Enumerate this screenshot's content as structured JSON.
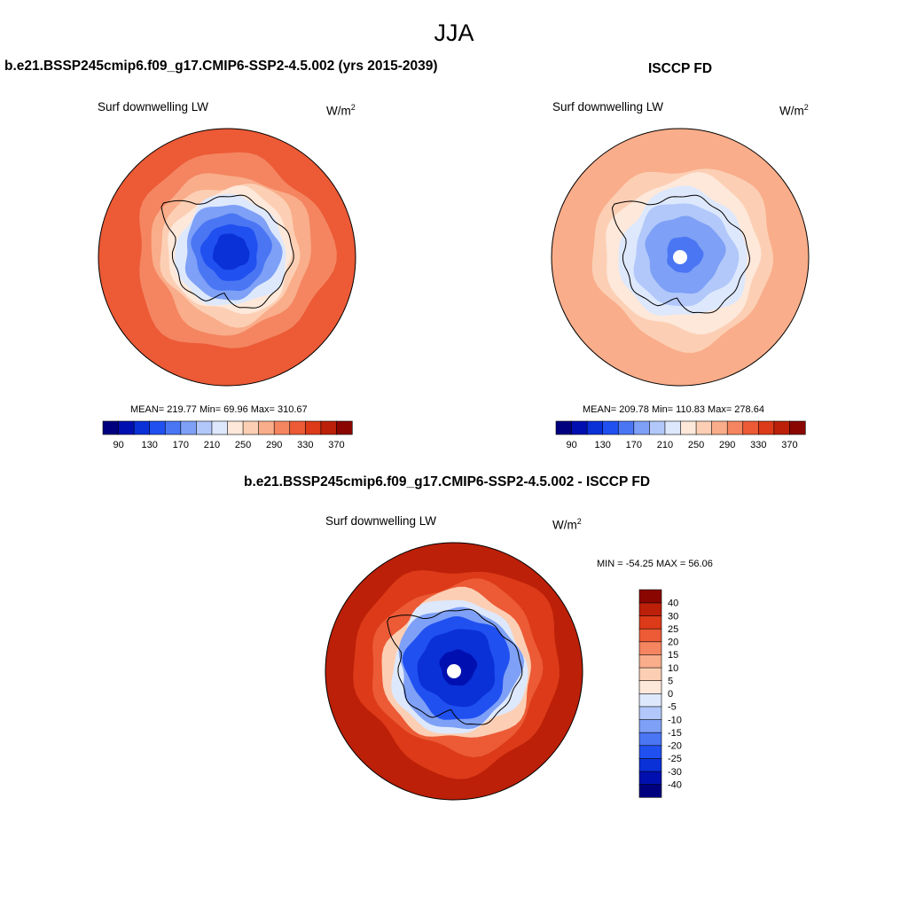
{
  "figure": {
    "title": "JJA"
  },
  "chart_data": [
    {
      "type": "heatmap",
      "projection": "south polar stereographic",
      "title": "b.e21.BSSP245cmip6.f09_g17.CMIP6-SSP2-4.5.002 (yrs 2015-2039)",
      "left_label": "Surf downwelling LW",
      "units_label": "W/m",
      "units_exp": "2",
      "stats": "MEAN= 219.77  Min=  69.96  Max= 310.67",
      "colorbar": {
        "orientation": "horizontal",
        "levels": [
          80,
          90,
          110,
          130,
          150,
          170,
          190,
          210,
          230,
          250,
          270,
          290,
          310,
          330,
          350,
          370
        ],
        "tick_labels": [
          "90",
          "130",
          "170",
          "210",
          "250",
          "290",
          "330",
          "370"
        ],
        "colors": [
          "#00007f",
          "#0010b0",
          "#0a30d8",
          "#2050f0",
          "#4a76f4",
          "#7ea0f6",
          "#b2c8fa",
          "#dde8fc",
          "#fde8da",
          "#fccfb4",
          "#f9ad8a",
          "#f48560",
          "#ec5a36",
          "#dc3a18",
          "#bc2008",
          "#8a0600"
        ]
      },
      "field": {
        "coast_value": 210,
        "continent_center": [
          0.03,
          -0.04
        ],
        "continent_radius": 0.45,
        "rings": [
          {
            "r": 1.0,
            "v": 300
          },
          {
            "r": 0.76,
            "v": 285
          },
          {
            "r": 0.62,
            "v": 265
          },
          {
            "r": 0.54,
            "v": 248
          },
          {
            "r": 0.48,
            "v": 225
          },
          {
            "r": 0.43,
            "v": 200
          },
          {
            "r": 0.37,
            "v": 175
          },
          {
            "r": 0.3,
            "v": 150
          },
          {
            "r": 0.22,
            "v": 120
          },
          {
            "r": 0.0,
            "v": 90
          }
        ]
      }
    },
    {
      "type": "heatmap",
      "projection": "south polar stereographic",
      "title": "ISCCP FD",
      "left_label": "Surf downwelling LW",
      "units_label": "W/m",
      "units_exp": "2",
      "stats": "MEAN= 209.78  Min= 110.83  Max= 278.64",
      "colorbar": {
        "orientation": "horizontal",
        "levels": [
          80,
          90,
          110,
          130,
          150,
          170,
          190,
          210,
          230,
          250,
          270,
          290,
          310,
          330,
          350,
          370
        ],
        "tick_labels": [
          "90",
          "130",
          "170",
          "210",
          "250",
          "290",
          "330",
          "370"
        ],
        "colors": [
          "#00007f",
          "#0010b0",
          "#0a30d8",
          "#2050f0",
          "#4a76f4",
          "#7ea0f6",
          "#b2c8fa",
          "#dde8fc",
          "#fde8da",
          "#fccfb4",
          "#f9ad8a",
          "#f48560",
          "#ec5a36",
          "#dc3a18",
          "#bc2008",
          "#8a0600"
        ]
      },
      "field": {
        "coast_value": 200,
        "continent_center": [
          0.03,
          -0.02
        ],
        "continent_radius": 0.47,
        "missing_pole": true,
        "rings": [
          {
            "r": 1.0,
            "v": 262
          },
          {
            "r": 0.82,
            "v": 255
          },
          {
            "r": 0.7,
            "v": 242
          },
          {
            "r": 0.6,
            "v": 222
          },
          {
            "r": 0.5,
            "v": 200
          },
          {
            "r": 0.4,
            "v": 175
          },
          {
            "r": 0.3,
            "v": 155
          },
          {
            "r": 0.0,
            "v": 140
          }
        ]
      }
    },
    {
      "type": "heatmap",
      "projection": "south polar stereographic",
      "title": "b.e21.BSSP245cmip6.f09_g17.CMIP6-SSP2-4.5.002 - ISCCP FD",
      "left_label": "Surf downwelling LW",
      "units_label": "W/m",
      "units_exp": "2",
      "stats": "MIN = -54.25 MAX =  56.06",
      "colorbar": {
        "orientation": "vertical",
        "levels": [
          -40,
          -30,
          -25,
          -20,
          -15,
          -10,
          -5,
          0,
          5,
          10,
          15,
          20,
          25,
          30,
          40
        ],
        "tick_labels": [
          "-40",
          "-30",
          "-25",
          "-20",
          "-15",
          "-10",
          "-5",
          "0",
          "5",
          "10",
          "15",
          "20",
          "25",
          "30",
          "40"
        ],
        "colors": [
          "#00007f",
          "#0010b0",
          "#0a30d8",
          "#2050f0",
          "#4a76f4",
          "#7ea0f6",
          "#b2c8fa",
          "#dde8fc",
          "#fde8da",
          "#fccfb4",
          "#f9ad8a",
          "#f48560",
          "#ec5a36",
          "#dc3a18",
          "#bc2008",
          "#8a0600"
        ]
      },
      "field": {
        "coast_value": -5,
        "continent_center": [
          0.03,
          -0.03
        ],
        "continent_radius": 0.46,
        "missing_pole": true,
        "rings": [
          {
            "r": 1.0,
            "v": 32
          },
          {
            "r": 0.8,
            "v": 30
          },
          {
            "r": 0.66,
            "v": 24
          },
          {
            "r": 0.58,
            "v": 12
          },
          {
            "r": 0.52,
            "v": 2
          },
          {
            "r": 0.47,
            "v": -12
          },
          {
            "r": 0.4,
            "v": -22
          },
          {
            "r": 0.3,
            "v": -28
          },
          {
            "r": 0.0,
            "v": -32
          }
        ]
      }
    }
  ]
}
